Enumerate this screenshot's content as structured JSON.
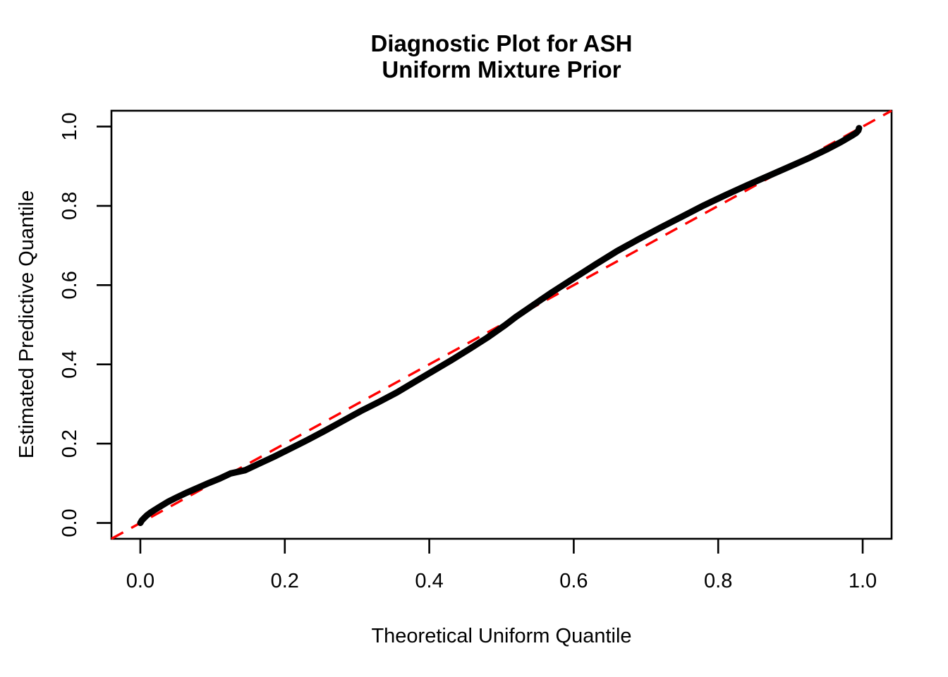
{
  "chart_data": {
    "type": "line",
    "title_lines": [
      "Diagnostic Plot for ASH",
      "Uniform Mixture Prior"
    ],
    "xlabel": "Theoretical Uniform Quantile",
    "ylabel": "Estimated Predictive Quantile",
    "xlim": [
      0,
      1
    ],
    "ylim": [
      0,
      1
    ],
    "grid": false,
    "legend": null,
    "x_ticks": {
      "values": [
        0.0,
        0.2,
        0.4,
        0.6,
        0.8,
        1.0
      ],
      "labels": [
        "0.0",
        "0.2",
        "0.4",
        "0.6",
        "0.8",
        "1.0"
      ]
    },
    "y_ticks": {
      "values": [
        0.0,
        0.2,
        0.4,
        0.6,
        0.8,
        1.0
      ],
      "labels": [
        "0.0",
        "0.2",
        "0.4",
        "0.6",
        "0.8",
        "1.0"
      ]
    },
    "series": [
      {
        "name": "estimated-predictive-quantile-curve",
        "color": "#000000",
        "points": [
          [
            0.0,
            0.0
          ],
          [
            0.002,
            0.006
          ],
          [
            0.005,
            0.012
          ],
          [
            0.009,
            0.019
          ],
          [
            0.014,
            0.026
          ],
          [
            0.02,
            0.033
          ],
          [
            0.028,
            0.042
          ],
          [
            0.038,
            0.053
          ],
          [
            0.05,
            0.064
          ],
          [
            0.065,
            0.077
          ],
          [
            0.08,
            0.089
          ],
          [
            0.095,
            0.101
          ],
          [
            0.11,
            0.112
          ],
          [
            0.125,
            0.125
          ],
          [
            0.145,
            0.133
          ],
          [
            0.165,
            0.15
          ],
          [
            0.185,
            0.167
          ],
          [
            0.205,
            0.185
          ],
          [
            0.23,
            0.208
          ],
          [
            0.255,
            0.232
          ],
          [
            0.28,
            0.257
          ],
          [
            0.305,
            0.282
          ],
          [
            0.33,
            0.305
          ],
          [
            0.355,
            0.329
          ],
          [
            0.38,
            0.356
          ],
          [
            0.405,
            0.383
          ],
          [
            0.43,
            0.41
          ],
          [
            0.455,
            0.438
          ],
          [
            0.48,
            0.467
          ],
          [
            0.505,
            0.499
          ],
          [
            0.52,
            0.52
          ],
          [
            0.545,
            0.551
          ],
          [
            0.57,
            0.582
          ],
          [
            0.6,
            0.617
          ],
          [
            0.63,
            0.652
          ],
          [
            0.66,
            0.686
          ],
          [
            0.69,
            0.716
          ],
          [
            0.72,
            0.745
          ],
          [
            0.75,
            0.773
          ],
          [
            0.78,
            0.801
          ],
          [
            0.81,
            0.827
          ],
          [
            0.84,
            0.852
          ],
          [
            0.87,
            0.876
          ],
          [
            0.9,
            0.9
          ],
          [
            0.925,
            0.92
          ],
          [
            0.95,
            0.942
          ],
          [
            0.97,
            0.961
          ],
          [
            0.985,
            0.977
          ],
          [
            0.991,
            0.984
          ],
          [
            0.994,
            0.99
          ],
          [
            0.995,
            0.996
          ]
        ]
      }
    ],
    "reference_line": {
      "name": "identity-diagonal",
      "style": "dashed",
      "color": "#FF0000",
      "from": [
        0,
        0
      ],
      "to": [
        1,
        1
      ]
    }
  }
}
